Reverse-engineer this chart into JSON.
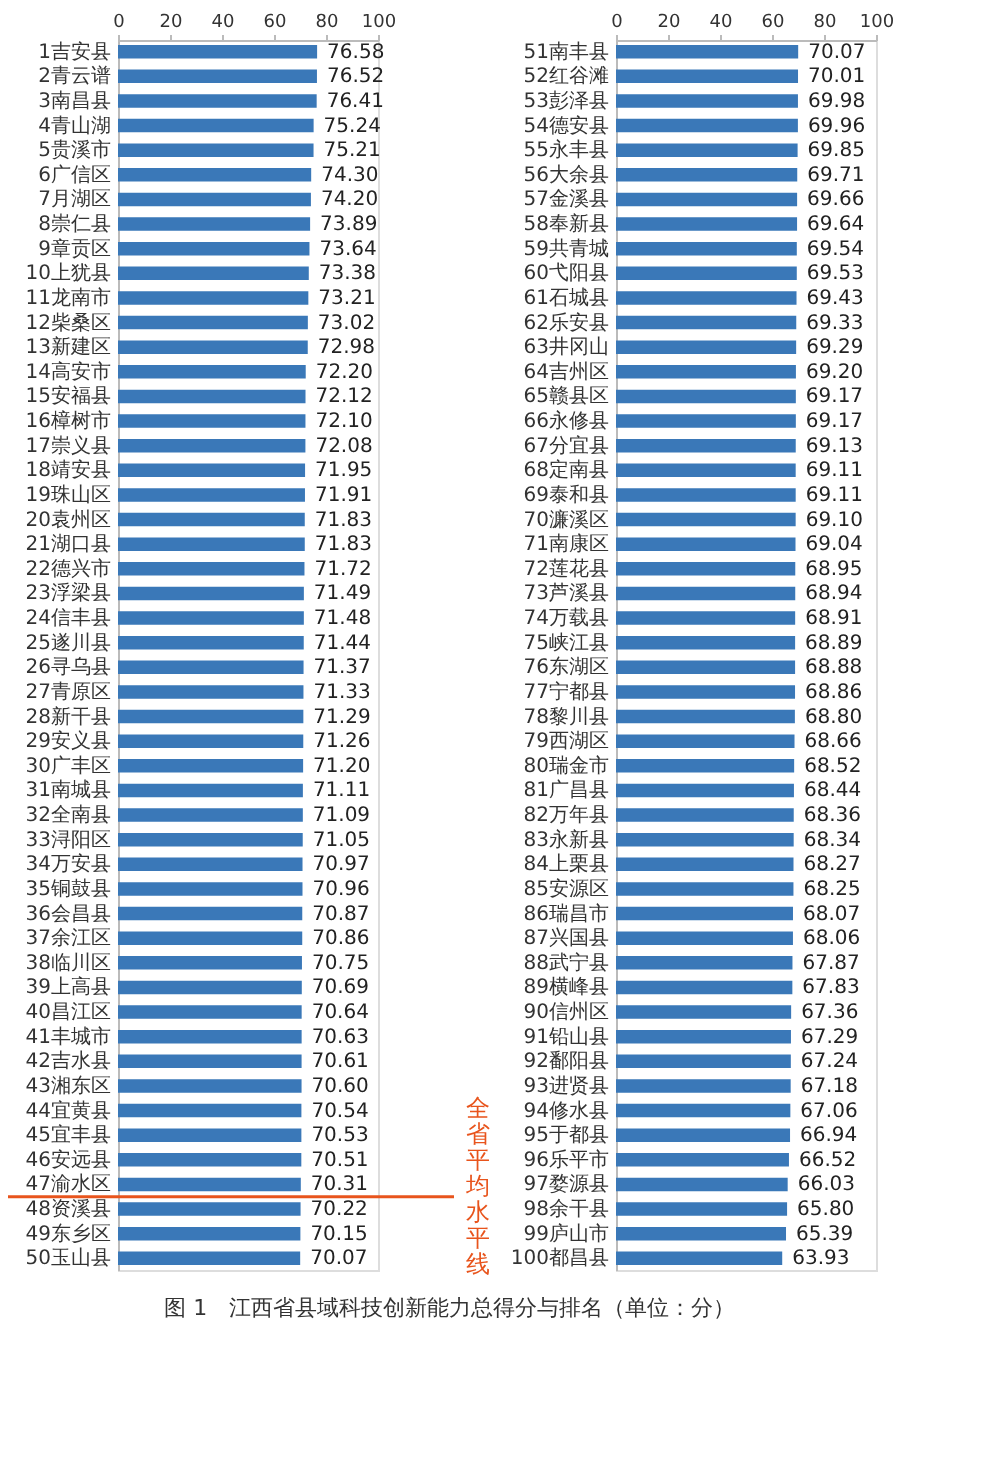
{
  "chart_data": [
    {
      "type": "bar",
      "orientation": "horizontal",
      "title": "图 1　江西省县域科技创新能力总得分与排名（单位：分）",
      "xlim": [
        0,
        100
      ],
      "xticks": [
        0,
        20,
        40,
        60,
        80,
        100
      ],
      "grid": false,
      "categories": [
        "1吉安县",
        "2青云谱",
        "3南昌县",
        "4青山湖",
        "5贵溪市",
        "6广信区",
        "7月湖区",
        "8崇仁县",
        "9章贡区",
        "10上犹县",
        "11龙南市",
        "12柴桑区",
        "13新建区",
        "14高安市",
        "15安福县",
        "16樟树市",
        "17崇义县",
        "18靖安县",
        "19珠山区",
        "20袁州区",
        "21湖口县",
        "22德兴市",
        "23浮梁县",
        "24信丰县",
        "25遂川县",
        "26寻乌县",
        "27青原区",
        "28新干县",
        "29安义县",
        "30广丰区",
        "31南城县",
        "32全南县",
        "33浔阳区",
        "34万安县",
        "35铜鼓县",
        "36会昌县",
        "37余江区",
        "38临川区",
        "39上高县",
        "40昌江区",
        "41丰城市",
        "42吉水县",
        "43湘东区",
        "44宜黄县",
        "45宜丰县",
        "46安远县",
        "47渝水区",
        "48资溪县",
        "49东乡区",
        "50玉山县"
      ],
      "series": [
        {
          "color": "#3a78b8",
          "values": [
            76.58,
            76.52,
            76.41,
            75.24,
            75.21,
            74.3,
            74.2,
            73.89,
            73.64,
            73.38,
            73.21,
            73.02,
            72.98,
            72.2,
            72.12,
            72.1,
            72.08,
            71.95,
            71.91,
            71.83,
            71.83,
            71.72,
            71.49,
            71.48,
            71.44,
            71.37,
            71.33,
            71.29,
            71.26,
            71.2,
            71.11,
            71.09,
            71.05,
            70.97,
            70.96,
            70.87,
            70.86,
            70.75,
            70.69,
            70.64,
            70.63,
            70.61,
            70.6,
            70.54,
            70.53,
            70.51,
            70.31,
            70.22,
            70.15,
            70.07
          ],
          "value_labels": [
            "76.58",
            "76.52",
            "76.41",
            "75.24",
            "75.21",
            "74.30",
            "74.20",
            "73.89",
            "73.64",
            "73.38",
            "73.21",
            "73.02",
            "72.98",
            "72.20",
            "72.12",
            "72.10",
            "72.08",
            "71.95",
            "71.91",
            "71.83",
            "71.83",
            "71.72",
            "71.49",
            "71.48",
            "71.44",
            "71.37",
            "71.33",
            "71.29",
            "71.26",
            "71.20",
            "71.11",
            "71.09",
            "71.05",
            "70.97",
            "70.96",
            "70.87",
            "70.86",
            "70.75",
            "70.69",
            "70.64",
            "70.63",
            "70.61",
            "70.60",
            "70.54",
            "70.53",
            "70.51",
            "70.31",
            "70.22",
            "70.15",
            "70.07"
          ]
        }
      ],
      "ref_lines": [
        {
          "axis": "y",
          "value": "47渝水区",
          "label": "全省平均水平线",
          "color": "#e8541c"
        }
      ]
    },
    {
      "type": "bar",
      "orientation": "horizontal",
      "xlim": [
        0,
        100
      ],
      "xticks": [
        0,
        20,
        40,
        60,
        80,
        100
      ],
      "grid": false,
      "categories": [
        "51南丰县",
        "52红谷滩",
        "53彭泽县",
        "54德安县",
        "55永丰县",
        "56大余县",
        "57金溪县",
        "58奉新县",
        "59共青城",
        "60弋阳县",
        "61石城县",
        "62乐安县",
        "63井冈山",
        "64吉州区",
        "65赣县区",
        "66永修县",
        "67分宜县",
        "68定南县",
        "69泰和县",
        "70濂溪区",
        "71南康区",
        "72莲花县",
        "73芦溪县",
        "74万载县",
        "75峡江县",
        "76东湖区",
        "77宁都县",
        "78黎川县",
        "79西湖区",
        "80瑞金市",
        "81广昌县",
        "82万年县",
        "83永新县",
        "84上栗县",
        "85安源区",
        "86瑞昌市",
        "87兴国县",
        "88武宁县",
        "89横峰县",
        "90信州区",
        "91铅山县",
        "92鄱阳县",
        "93进贤县",
        "94修水县",
        "95于都县",
        "96乐平市",
        "97婺源县",
        "98余干县",
        "99庐山市",
        "100都昌县"
      ],
      "series": [
        {
          "color": "#3a78b8",
          "values": [
            70.07,
            70.01,
            69.98,
            69.96,
            69.85,
            69.71,
            69.66,
            69.64,
            69.54,
            69.53,
            69.43,
            69.33,
            69.29,
            69.2,
            69.17,
            69.17,
            69.13,
            69.11,
            69.11,
            69.1,
            69.04,
            68.95,
            68.94,
            68.91,
            68.89,
            68.88,
            68.86,
            68.8,
            68.66,
            68.52,
            68.44,
            68.36,
            68.34,
            68.27,
            68.25,
            68.07,
            68.06,
            67.87,
            67.83,
            67.36,
            67.29,
            67.24,
            67.18,
            67.06,
            66.94,
            66.52,
            66.03,
            65.8,
            65.39,
            63.93
          ],
          "value_labels": [
            "70.07",
            "70.01",
            "69.98",
            "69.96",
            "69.85",
            "69.71",
            "69.66",
            "69.64",
            "69.54",
            "69.53",
            "69.43",
            "69.33",
            "69.29",
            "69.20",
            "69.17",
            "69.17",
            "69.13",
            "69.11",
            "69.11",
            "69.10",
            "69.04",
            "68.95",
            "68.94",
            "68.91",
            "68.89",
            "68.88",
            "68.86",
            "68.80",
            "68.66",
            "68.52",
            "68.44",
            "68.36",
            "68.34",
            "68.27",
            "68.25",
            "68.07",
            "68.06",
            "67.87",
            "67.83",
            "67.36",
            "67.29",
            "67.24",
            "67.18",
            "67.06",
            "66.94",
            "66.52",
            "66.03",
            "65.80",
            "65.39",
            "63.93"
          ]
        }
      ]
    }
  ]
}
